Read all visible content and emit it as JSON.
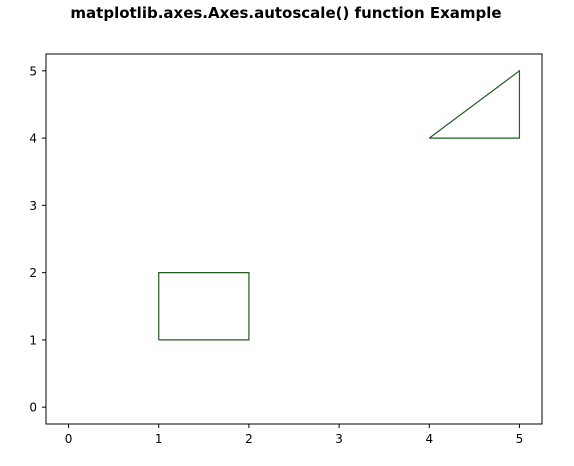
{
  "chart_data": {
    "type": "line",
    "title": "matplotlib.axes.Axes.autoscale() function Example",
    "xlabel": "",
    "ylabel": "",
    "xlim": [
      -0.25,
      5.25
    ],
    "ylim": [
      -0.25,
      5.25
    ],
    "xticks": [
      0,
      1,
      2,
      3,
      4,
      5
    ],
    "yticks": [
      0,
      1,
      2,
      3,
      4,
      5
    ],
    "grid": false,
    "series": [
      {
        "shape": "rectangle",
        "x": [
          1,
          2,
          2,
          1,
          1
        ],
        "y": [
          1,
          1,
          2,
          2,
          1
        ],
        "color": "#1e5e1e"
      },
      {
        "shape": "triangle",
        "x": [
          4,
          5,
          5,
          4
        ],
        "y": [
          4,
          5,
          4,
          4
        ],
        "color": "#1e5e1e"
      }
    ]
  }
}
